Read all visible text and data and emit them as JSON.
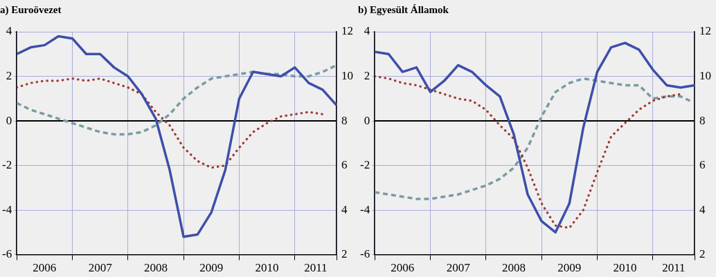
{
  "chart_data": [
    {
      "type": "line",
      "title": "a) Euroövezet",
      "xlim": [
        2006,
        2011.75
      ],
      "xticks": [
        {
          "value": 2006,
          "label": null
        },
        {
          "value": 2006.5,
          "label": "2006"
        },
        {
          "value": 2007,
          "label": null
        },
        {
          "value": 2007.5,
          "label": "2007"
        },
        {
          "value": 2008,
          "label": null
        },
        {
          "value": 2008.5,
          "label": "2008"
        },
        {
          "value": 2009,
          "label": null
        },
        {
          "value": 2009.5,
          "label": "2009"
        },
        {
          "value": 2010,
          "label": null
        },
        {
          "value": 2010.5,
          "label": "2010"
        },
        {
          "value": 2011,
          "label": null
        },
        {
          "value": 2011.375,
          "label": "2011"
        },
        {
          "value": 2011.75,
          "label": null
        }
      ],
      "ylim": [
        -6,
        4
      ],
      "yticks": [
        -6,
        -4,
        -2,
        0,
        2,
        4
      ],
      "y2lim": [
        2,
        12
      ],
      "y2ticks": [
        2,
        4,
        6,
        8,
        10,
        12
      ],
      "grid": true,
      "legend": false,
      "marker": "none",
      "ref_lines": [
        {
          "axis": "y",
          "value": 0,
          "color": "#000000"
        }
      ],
      "series": [
        {
          "color": "#3d4fa8",
          "line_style": "solid",
          "x": [
            2006,
            2006.25,
            2006.5,
            2006.75,
            2007,
            2007.25,
            2007.5,
            2007.75,
            2008,
            2008.25,
            2008.5,
            2008.75,
            2009,
            2009.25,
            2009.5,
            2009.75,
            2010,
            2010.25,
            2010.5,
            2010.75,
            2011,
            2011.25,
            2011.5,
            2011.75
          ],
          "values": [
            3.0,
            3.3,
            3.4,
            3.8,
            3.7,
            3.0,
            3.0,
            2.4,
            2.0,
            1.2,
            0.1,
            -2.2,
            -5.2,
            -5.1,
            -4.1,
            -2.2,
            1.0,
            2.2,
            2.1,
            2.0,
            2.4,
            1.7,
            1.4,
            0.7
          ]
        },
        {
          "color": "#a0392e",
          "line_style": "dotted",
          "x": [
            2006,
            2006.25,
            2006.5,
            2006.75,
            2007,
            2007.25,
            2007.5,
            2007.75,
            2008,
            2008.25,
            2008.5,
            2008.75,
            2009,
            2009.25,
            2009.5,
            2009.75,
            2010,
            2010.25,
            2010.5,
            2010.75,
            2011,
            2011.25,
            2011.5
          ],
          "values": [
            1.5,
            1.7,
            1.8,
            1.8,
            1.9,
            1.8,
            1.9,
            1.7,
            1.5,
            1.2,
            0.4,
            -0.2,
            -1.2,
            -1.8,
            -2.1,
            -2.0,
            -1.2,
            -0.5,
            -0.1,
            0.2,
            0.3,
            0.4,
            0.3
          ]
        },
        {
          "color": "#7a9aa5",
          "line_style": "dashed",
          "axis": "y2",
          "x": [
            2006,
            2006.25,
            2006.5,
            2006.75,
            2007,
            2007.25,
            2007.5,
            2007.75,
            2008,
            2008.25,
            2008.5,
            2008.75,
            2009,
            2009.25,
            2009.5,
            2009.75,
            2010,
            2010.25,
            2010.5,
            2010.75,
            2011,
            2011.25,
            2011.5,
            2011.75
          ],
          "values": [
            8.8,
            8.5,
            8.3,
            8.1,
            7.9,
            7.7,
            7.5,
            7.4,
            7.4,
            7.5,
            7.8,
            8.3,
            9.0,
            9.5,
            9.9,
            10.0,
            10.1,
            10.2,
            10.1,
            10.1,
            10.0,
            10.0,
            10.2,
            10.5
          ]
        }
      ]
    },
    {
      "type": "line",
      "title": "b) Egyesült Államok",
      "xlim": [
        2006,
        2011.75
      ],
      "xticks": [
        {
          "value": 2006,
          "label": null
        },
        {
          "value": 2006.5,
          "label": "2006"
        },
        {
          "value": 2007,
          "label": null
        },
        {
          "value": 2007.5,
          "label": "2007"
        },
        {
          "value": 2008,
          "label": null
        },
        {
          "value": 2008.5,
          "label": "2008"
        },
        {
          "value": 2009,
          "label": null
        },
        {
          "value": 2009.5,
          "label": "2009"
        },
        {
          "value": 2010,
          "label": null
        },
        {
          "value": 2010.5,
          "label": "2010"
        },
        {
          "value": 2011,
          "label": null
        },
        {
          "value": 2011.375,
          "label": "2011"
        },
        {
          "value": 2011.75,
          "label": null
        }
      ],
      "ylim": [
        -6,
        4
      ],
      "yticks": [
        -6,
        -4,
        -2,
        0,
        2,
        4
      ],
      "y2lim": [
        2,
        12
      ],
      "y2ticks": [
        2,
        4,
        6,
        8,
        10,
        12
      ],
      "grid": true,
      "legend": false,
      "marker": "none",
      "ref_lines": [
        {
          "axis": "y",
          "value": 0,
          "color": "#000000"
        }
      ],
      "series": [
        {
          "color": "#3d4fa8",
          "line_style": "solid",
          "x": [
            2006,
            2006.25,
            2006.5,
            2006.75,
            2007,
            2007.25,
            2007.5,
            2007.75,
            2008,
            2008.25,
            2008.5,
            2008.75,
            2009,
            2009.25,
            2009.5,
            2009.75,
            2010,
            2010.25,
            2010.5,
            2010.75,
            2011,
            2011.25,
            2011.5,
            2011.75
          ],
          "values": [
            3.1,
            3.0,
            2.2,
            2.4,
            1.3,
            1.8,
            2.5,
            2.2,
            1.6,
            1.1,
            -0.6,
            -3.3,
            -4.5,
            -5.0,
            -3.7,
            -0.3,
            2.2,
            3.3,
            3.5,
            3.2,
            2.3,
            1.6,
            1.5,
            1.6
          ]
        },
        {
          "color": "#a0392e",
          "line_style": "dotted",
          "x": [
            2006,
            2006.25,
            2006.5,
            2006.75,
            2007,
            2007.25,
            2007.5,
            2007.75,
            2008,
            2008.25,
            2008.5,
            2008.75,
            2009,
            2009.25,
            2009.5,
            2009.75,
            2010,
            2010.25,
            2010.5,
            2010.75,
            2011,
            2011.25,
            2011.5
          ],
          "values": [
            2.0,
            1.9,
            1.7,
            1.6,
            1.4,
            1.2,
            1.0,
            0.9,
            0.5,
            -0.2,
            -0.8,
            -2.1,
            -3.7,
            -4.7,
            -4.8,
            -4.0,
            -2.3,
            -0.7,
            -0.1,
            0.5,
            0.9,
            1.1,
            1.2
          ]
        },
        {
          "color": "#7a9aa5",
          "line_style": "dashed",
          "axis": "y2",
          "x": [
            2006,
            2006.25,
            2006.5,
            2006.75,
            2007,
            2007.25,
            2007.5,
            2007.75,
            2008,
            2008.25,
            2008.5,
            2008.75,
            2009,
            2009.25,
            2009.5,
            2009.75,
            2010,
            2010.25,
            2010.5,
            2010.75,
            2011,
            2011.25,
            2011.5,
            2011.67
          ],
          "values": [
            4.8,
            4.7,
            4.6,
            4.5,
            4.5,
            4.6,
            4.7,
            4.9,
            5.1,
            5.4,
            5.9,
            6.8,
            8.2,
            9.3,
            9.7,
            9.9,
            9.8,
            9.7,
            9.6,
            9.6,
            9.0,
            9.1,
            9.1,
            8.9
          ]
        }
      ]
    }
  ]
}
